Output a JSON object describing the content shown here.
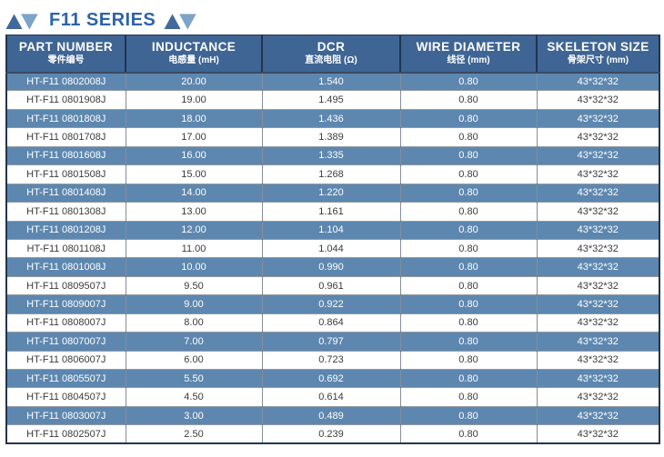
{
  "title": {
    "text": "F11 SERIES"
  },
  "icons": {
    "left": "up-down-triangles-icon",
    "right": "up-down-triangles-icon"
  },
  "colors": {
    "title_blue": "#2d63aa",
    "triangle_dark": "#41699a",
    "triangle_light": "#7da3c8",
    "header_bg": "#3e6594",
    "row_blue": "#5d87af",
    "border_dark": "#22344f",
    "body_text_dark": "#3b3b3b",
    "header_text": "#ffffff"
  },
  "table": {
    "column_keys": [
      "part-number",
      "inductance",
      "dcr",
      "wire-diameter",
      "skeleton-size"
    ],
    "columns": [
      {
        "en": "PART NUMBER",
        "zh": "零件编号"
      },
      {
        "en": "INDUCTANCE",
        "zh": "电感量 (mH)"
      },
      {
        "en": "DCR",
        "zh": "直流电阻 (Ω)"
      },
      {
        "en": "WIRE DIAMETER",
        "zh": "线径 (mm)"
      },
      {
        "en": "SKELETON SIZE",
        "zh": "骨架尺寸 (mm)"
      }
    ],
    "rows": [
      [
        "HT-F11 0802008J",
        "20.00",
        "1.540",
        "0.80",
        "43*32*32"
      ],
      [
        "HT-F11 0801908J",
        "19.00",
        "1.495",
        "0.80",
        "43*32*32"
      ],
      [
        "HT-F11 0801808J",
        "18.00",
        "1.436",
        "0.80",
        "43*32*32"
      ],
      [
        "HT-F11 0801708J",
        "17.00",
        "1.389",
        "0.80",
        "43*32*32"
      ],
      [
        "HT-F11 0801608J",
        "16.00",
        "1.335",
        "0.80",
        "43*32*32"
      ],
      [
        "HT-F11 0801508J",
        "15.00",
        "1.268",
        "0.80",
        "43*32*32"
      ],
      [
        "HT-F11 0801408J",
        "14.00",
        "1.220",
        "0.80",
        "43*32*32"
      ],
      [
        "HT-F11 0801308J",
        "13.00",
        "1.161",
        "0.80",
        "43*32*32"
      ],
      [
        "HT-F11 0801208J",
        "12.00",
        "1.104",
        "0.80",
        "43*32*32"
      ],
      [
        "HT-F11 0801108J",
        "11.00",
        "1.044",
        "0.80",
        "43*32*32"
      ],
      [
        "HT-F11 0801008J",
        "10.00",
        "0.990",
        "0.80",
        "43*32*32"
      ],
      [
        "HT-F11 0809507J",
        "9.50",
        "0.961",
        "0.80",
        "43*32*32"
      ],
      [
        "HT-F11 0809007J",
        "9.00",
        "0.922",
        "0.80",
        "43*32*32"
      ],
      [
        "HT-F11 0808007J",
        "8.00",
        "0.864",
        "0.80",
        "43*32*32"
      ],
      [
        "HT-F11 0807007J",
        "7.00",
        "0.797",
        "0.80",
        "43*32*32"
      ],
      [
        "HT-F11 0806007J",
        "6.00",
        "0.723",
        "0.80",
        "43*32*32"
      ],
      [
        "HT-F11 0805507J",
        "5.50",
        "0.692",
        "0.80",
        "43*32*32"
      ],
      [
        "HT-F11 0804507J",
        "4.50",
        "0.614",
        "0.80",
        "43*32*32"
      ],
      [
        "HT-F11 0803007J",
        "3.00",
        "0.489",
        "0.80",
        "43*32*32"
      ],
      [
        "HT-F11 0802507J",
        "2.50",
        "0.239",
        "0.80",
        "43*32*32"
      ]
    ]
  }
}
